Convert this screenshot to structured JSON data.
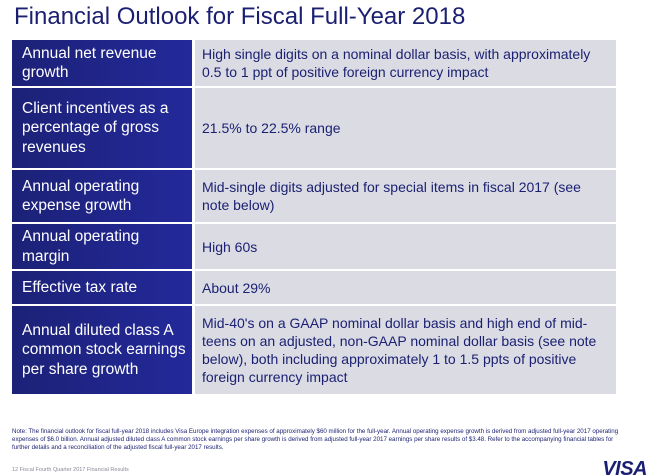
{
  "title": "Financial Outlook for Fiscal Full-Year 2018",
  "rows": [
    {
      "label": "Annual net revenue growth",
      "value": "High single digits on a nominal dollar basis, with approximately 0.5 to 1 ppt of positive foreign currency impact"
    },
    {
      "label": "Client incentives as a percentage of gross revenues",
      "value": "21.5% to 22.5% range"
    },
    {
      "label": "Annual operating expense growth",
      "value": "Mid-single digits adjusted for special items in fiscal 2017 (see note below)"
    },
    {
      "label": "Annual operating margin",
      "value": "High 60s"
    },
    {
      "label": "Effective tax rate",
      "value": "About 29%"
    },
    {
      "label": "Annual diluted class A common stock earnings per share growth",
      "value": "Mid-40's on a GAAP nominal dollar basis and high end of mid-teens on an adjusted, non-GAAP nominal dollar basis (see note below), both including approximately 1 to 1.5 ppts of positive foreign currency impact"
    }
  ],
  "footnote": "Note: The financial outlook for fiscal full-year 2018 includes Visa Europe integration expenses of approximately $60 million for the full-year. Annual operating expense growth is derived from adjusted full-year 2017 operating expenses of $6.0 billion. Annual adjusted diluted class A common stock earnings per share growth is derived from adjusted full-year 2017 earnings per share results of $3.48. Refer to the accompanying financial tables for further details and a reconciliation of the adjusted fiscal full-year 2017 results.",
  "footer": "12   Fiscal Fourth Quarter 2017 Financial Results",
  "logo": "VISA"
}
